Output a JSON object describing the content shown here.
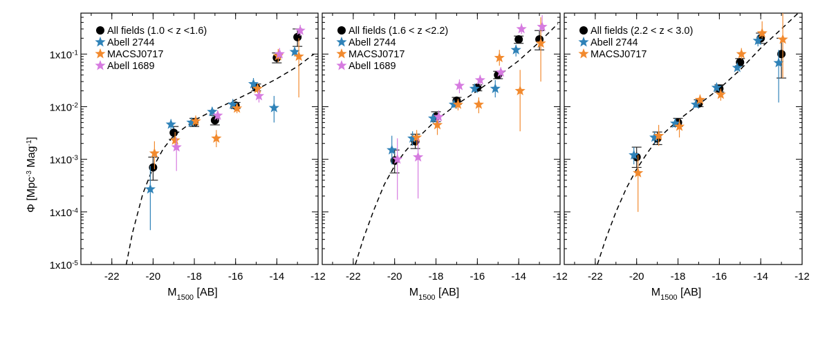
{
  "figure": {
    "ylabel_main": "Φ [Mpc",
    "ylabel_sup1": "-3",
    "ylabel_mid": " Mag",
    "ylabel_sup2": "-1",
    "ylabel_end": "]",
    "xlabel_main": "M",
    "xlabel_sub": "1500",
    "xlabel_end": " [AB]",
    "x_ticks": [
      "-22",
      "-20",
      "-18",
      "-16",
      "-14",
      "-12"
    ],
    "y_ticks": [
      {
        "base": "1x10",
        "exp": "-5"
      },
      {
        "base": "1x10",
        "exp": "-4"
      },
      {
        "base": "1x10",
        "exp": "-3"
      },
      {
        "base": "1x10",
        "exp": "-2"
      },
      {
        "base": "1x10",
        "exp": "-1"
      }
    ]
  },
  "colors": {
    "all_fields": "#000000",
    "abell2744": "#2f82b8",
    "macs0717": "#f28a2e",
    "abell1689": "#d67be0"
  },
  "chart_data": [
    {
      "type": "scatter",
      "xlabel": "M1500 [AB]",
      "ylabel": "Φ [Mpc-3 Mag-1]",
      "xlim": [
        -23.5,
        -12
      ],
      "ylim": [
        1e-05,
        0.6
      ],
      "yscale": "log",
      "legend_position": "top-left",
      "model_curve": "dashed Schechter fit",
      "curve": {
        "x": [
          -21.3,
          -21,
          -20.5,
          -20,
          -19.5,
          -19,
          -18,
          -17,
          -16,
          -15,
          -14,
          -13,
          -12.2
        ],
        "y": [
          1e-05,
          4e-05,
          0.00022,
          0.0007,
          0.0016,
          0.0028,
          0.0055,
          0.0088,
          0.0135,
          0.021,
          0.034,
          0.058,
          0.1
        ]
      },
      "series": [
        {
          "name": "All fields (1.0 < z <1.6)",
          "marker": "circle",
          "color_key": "all_fields",
          "x": [
            -20,
            -19,
            -18,
            -17,
            -16,
            -15,
            -14,
            -13
          ],
          "y": [
            0.0007,
            0.0032,
            0.005,
            0.0055,
            0.0105,
            0.023,
            0.085,
            0.21
          ],
          "ylo": [
            0.0004,
            0.0024,
            0.0042,
            0.0045,
            0.0092,
            0.02,
            0.068,
            0.14
          ],
          "yhi": [
            0.0011,
            0.0042,
            0.006,
            0.0068,
            0.012,
            0.027,
            0.105,
            0.3
          ]
        },
        {
          "name": "Abell 2744",
          "marker": "star",
          "color_key": "abell2744",
          "x": [
            -20,
            -19,
            -18,
            -17,
            -16,
            -15,
            -14,
            -13
          ],
          "y": [
            0.00027,
            0.0046,
            0.005,
            0.008,
            0.011,
            0.027,
            0.0095,
            0.11
          ],
          "ylo": [
            4.5e-05,
            0.0036,
            0.0042,
            0.0065,
            0.009,
            0.021,
            0.005,
            0.09
          ],
          "yhi": [
            0.00075,
            0.0058,
            0.006,
            0.0098,
            0.014,
            0.035,
            0.016,
            0.14
          ]
        },
        {
          "name": "MACSJ0717",
          "marker": "star",
          "color_key": "macs0717",
          "x": [
            -20,
            -19,
            -18,
            -17,
            -16,
            -15,
            -14,
            -13
          ],
          "y": [
            0.0013,
            0.0023,
            0.0053,
            0.0025,
            0.0093,
            0.022,
            0.092,
            0.09
          ],
          "ylo": [
            0.00065,
            0.0016,
            0.0043,
            0.0017,
            0.0075,
            0.018,
            0.07,
            0.015
          ],
          "yhi": [
            0.0022,
            0.0033,
            0.0068,
            0.0036,
            0.0115,
            0.027,
            0.125,
            0.2
          ]
        },
        {
          "name": "Abell 1689",
          "marker": "star",
          "color_key": "abell1689",
          "x": [
            -19,
            -17,
            -15,
            -14,
            -13
          ],
          "y": [
            0.0017,
            0.0068,
            0.016,
            0.1,
            0.28
          ],
          "ylo": [
            0.0006,
            0.0055,
            0.012,
            0.08,
            0.22
          ],
          "yhi": [
            0.0026,
            0.0085,
            0.021,
            0.13,
            0.36
          ]
        }
      ]
    },
    {
      "type": "scatter",
      "xlabel": "M1500 [AB]",
      "ylim": [
        1e-05,
        0.6
      ],
      "xlim": [
        -23.5,
        -12
      ],
      "yscale": "log",
      "legend_position": "top-left",
      "curve": {
        "x": [
          -21.9,
          -21.5,
          -21,
          -20.5,
          -20,
          -19.5,
          -19,
          -18,
          -17,
          -16,
          -15,
          -14,
          -13,
          -12.1
        ],
        "y": [
          1e-05,
          3.2e-05,
          0.00011,
          0.00033,
          0.00075,
          0.0014,
          0.0023,
          0.0055,
          0.011,
          0.02,
          0.038,
          0.075,
          0.17,
          0.38
        ]
      },
      "series": [
        {
          "name": "All fields (1.6 < z <2.2)",
          "marker": "circle",
          "color_key": "all_fields",
          "x": [
            -20,
            -19,
            -18,
            -17,
            -16,
            -15,
            -14,
            -13
          ],
          "y": [
            0.00095,
            0.0022,
            0.0065,
            0.013,
            0.023,
            0.04,
            0.19,
            0.19
          ],
          "ylo": [
            0.00055,
            0.0016,
            0.0052,
            0.011,
            0.02,
            0.034,
            0.16,
            0.12
          ],
          "yhi": [
            0.0015,
            0.003,
            0.008,
            0.015,
            0.026,
            0.047,
            0.22,
            0.28
          ]
        },
        {
          "name": "Abell 2744",
          "marker": "star",
          "color_key": "abell2744",
          "x": [
            -20,
            -19,
            -18,
            -17,
            -16,
            -15,
            -14
          ],
          "y": [
            0.0015,
            0.0025,
            0.006,
            0.011,
            0.022,
            0.022,
            0.12
          ],
          "ylo": [
            0.0008,
            0.0018,
            0.0048,
            0.0095,
            0.019,
            0.015,
            0.09
          ],
          "yhi": [
            0.0028,
            0.0034,
            0.0075,
            0.013,
            0.026,
            0.032,
            0.15
          ]
        },
        {
          "name": "MACSJ0717",
          "marker": "star",
          "color_key": "macs0717",
          "x": [
            -19,
            -18,
            -17,
            -16,
            -15,
            -14,
            -13
          ],
          "y": [
            0.0026,
            0.0045,
            0.011,
            0.011,
            0.085,
            0.02,
            0.16
          ],
          "ylo": [
            0.0018,
            0.0029,
            0.0085,
            0.0075,
            0.06,
            0.0034,
            0.03
          ],
          "yhi": [
            0.0036,
            0.006,
            0.014,
            0.015,
            0.12,
            0.05,
            0.5
          ]
        },
        {
          "name": "Abell 1689",
          "marker": "star",
          "color_key": "abell1689",
          "x": [
            -20,
            -19,
            -18,
            -17,
            -16,
            -15,
            -14,
            -13
          ],
          "y": [
            0.001,
            0.0011,
            0.0064,
            0.025,
            0.032,
            0.045,
            0.3,
            0.33
          ],
          "ylo": [
            0.00017,
            0.00018,
            0.0048,
            0.018,
            0.025,
            0.035,
            0.24,
            0.26
          ],
          "yhi": [
            0.0025,
            0.0025,
            0.0085,
            0.033,
            0.04,
            0.056,
            0.38,
            0.55
          ]
        }
      ]
    },
    {
      "type": "scatter",
      "xlabel": "M1500 [AB]",
      "ylim": [
        1e-05,
        0.6
      ],
      "xlim": [
        -23.5,
        -12
      ],
      "yscale": "log",
      "legend_position": "top-left",
      "curve": {
        "x": [
          -21.9,
          -21.5,
          -21,
          -20.5,
          -20,
          -19.5,
          -19,
          -18,
          -17,
          -16,
          -15,
          -14,
          -13,
          -12.1
        ],
        "y": [
          1e-05,
          3e-05,
          0.0001,
          0.00028,
          0.00065,
          0.0013,
          0.0024,
          0.0055,
          0.011,
          0.022,
          0.05,
          0.13,
          0.3,
          0.65
        ]
      },
      "series": [
        {
          "name": "All fields (2.2 < z < 3.0)",
          "marker": "circle",
          "color_key": "all_fields",
          "x": [
            -20,
            -19,
            -18,
            -17,
            -16,
            -15,
            -14,
            -13
          ],
          "y": [
            0.0011,
            0.0025,
            0.005,
            0.0115,
            0.022,
            0.07,
            0.2,
            0.1
          ],
          "ylo": [
            0.0007,
            0.0019,
            0.0042,
            0.01,
            0.019,
            0.06,
            0.16,
            0.035
          ],
          "yhi": [
            0.0017,
            0.0033,
            0.006,
            0.0135,
            0.026,
            0.082,
            0.25,
            0.2
          ]
        },
        {
          "name": "Abell 2744",
          "marker": "star",
          "color_key": "abell2744",
          "x": [
            -20,
            -19,
            -18,
            -17,
            -16,
            -15,
            -14,
            -13
          ],
          "y": [
            0.0012,
            0.0026,
            0.0048,
            0.011,
            0.023,
            0.055,
            0.18,
            0.068
          ],
          "ylo": [
            0.0008,
            0.002,
            0.004,
            0.0095,
            0.02,
            0.048,
            0.14,
            0.012
          ],
          "yhi": [
            0.0017,
            0.0034,
            0.0058,
            0.013,
            0.027,
            0.064,
            0.23,
            0.12
          ]
        },
        {
          "name": "MACSJ0717",
          "marker": "star",
          "color_key": "macs0717",
          "x": [
            -20,
            -19,
            -18,
            -17,
            -16,
            -15,
            -14,
            -13
          ],
          "y": [
            0.00055,
            0.0028,
            0.0042,
            0.0135,
            0.017,
            0.1,
            0.25,
            0.19
          ],
          "ylo": [
            0.0001,
            0.0018,
            0.0026,
            0.011,
            0.013,
            0.08,
            0.2,
            0.035
          ],
          "yhi": [
            0.0012,
            0.0045,
            0.0058,
            0.017,
            0.022,
            0.13,
            0.42,
            0.7
          ]
        }
      ]
    }
  ]
}
